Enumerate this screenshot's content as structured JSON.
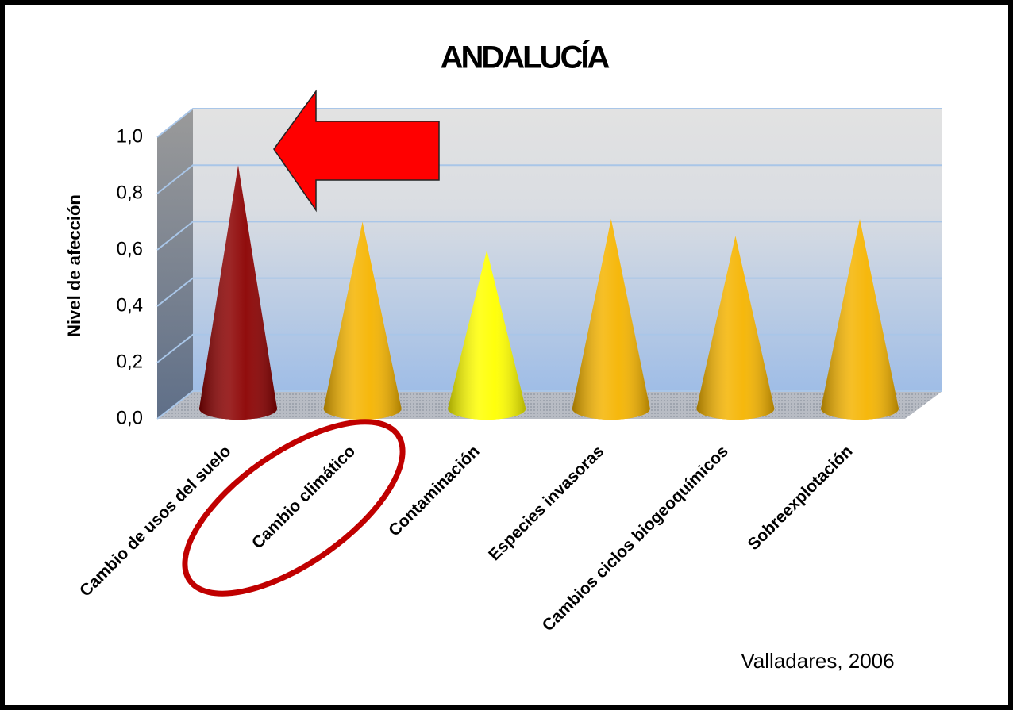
{
  "chart_data": {
    "type": "cone",
    "title": "ANDALUCÍA",
    "y_label": "Nivel de afección",
    "annotation": "Valladares, 2006",
    "categories": [
      "Cambio de usos del suelo",
      "Cambio climático",
      "Contaminación",
      "Especies invasoras",
      "Cambios ciclos biogeoquímicos",
      "Sobreexplotación"
    ],
    "values": [
      0.85,
      0.65,
      0.55,
      0.66,
      0.6,
      0.66
    ],
    "colors": [
      "#8b0000",
      "#f5b400",
      "#ffff00",
      "#f5b400",
      "#f5b400",
      "#f5b400"
    ],
    "ylim": [
      0,
      1
    ],
    "yticks": [
      {
        "value": 0,
        "label": "0,0"
      },
      {
        "value": 0.2,
        "label": "0,2"
      },
      {
        "value": 0.4,
        "label": "0,4"
      },
      {
        "value": 0.6,
        "label": "0,6"
      },
      {
        "value": 0.8,
        "label": "0,8"
      },
      {
        "value": 1,
        "label": "1,0"
      }
    ],
    "grid": true
  }
}
